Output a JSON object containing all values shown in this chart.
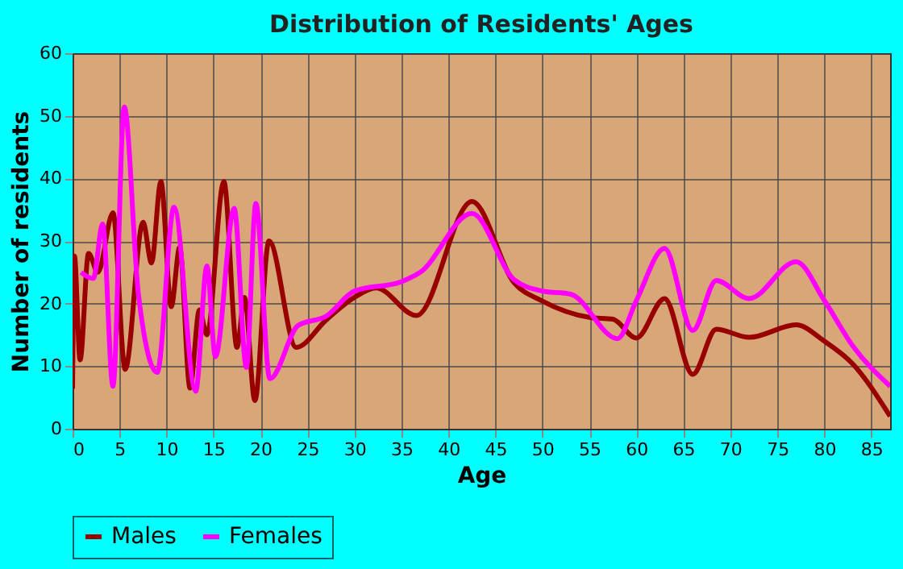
{
  "chart_data": {
    "type": "line",
    "title": "Distribution of Residents' Ages",
    "xlabel": "Age",
    "ylabel": "Number of residents",
    "xlim": [
      0,
      87
    ],
    "ylim": [
      0,
      60
    ],
    "xticks": [
      0,
      5,
      10,
      15,
      20,
      25,
      30,
      35,
      40,
      45,
      50,
      55,
      60,
      65,
      70,
      75,
      80,
      85
    ],
    "yticks": [
      0,
      10,
      20,
      30,
      40,
      50,
      60
    ],
    "grid": true,
    "legend": "bottom",
    "line_style": "solid",
    "marker": "none",
    "series": [
      {
        "name": "Males",
        "color": "#990000",
        "x": [
          0,
          0.2,
          0.8,
          1.7,
          2.7,
          4.3,
          5.6,
          7.5,
          8.4,
          9.4,
          10.5,
          11.4,
          12.5,
          13.5,
          14.3,
          16.1,
          17.5,
          18.3,
          19.4,
          20.9,
          23.8,
          27,
          30,
          32.3,
          36.6,
          42.5,
          47,
          50,
          55,
          57.5,
          60,
          63,
          66,
          68.5,
          72,
          77,
          80,
          83,
          87
        ],
        "values": [
          6.4,
          27.6,
          11,
          28,
          25,
          34.5,
          9.5,
          33,
          26.5,
          39.5,
          19.5,
          29,
          6.5,
          19,
          15,
          39.5,
          13,
          21,
          4.5,
          30,
          13,
          17.4,
          21,
          22.5,
          18.1,
          36.3,
          23.3,
          20.4,
          17.8,
          17.5,
          14.5,
          20.8,
          8.7,
          15.9,
          14.6,
          16.6,
          14,
          10.4,
          2
        ]
      },
      {
        "name": "Females",
        "color": "#ff00ff",
        "x": [
          0.9,
          2.2,
          3.2,
          4.3,
          5.5,
          7,
          9,
          10.8,
          13.1,
          14.3,
          15.2,
          17.2,
          18.5,
          19.5,
          21,
          24,
          27,
          30,
          35,
          37,
          42.5,
          47,
          50,
          53,
          58,
          60,
          63,
          66,
          68.5,
          72,
          77,
          80,
          83,
          87
        ],
        "values": [
          25,
          24,
          32.7,
          6.8,
          51.4,
          21.6,
          9,
          35.4,
          6,
          26,
          11.5,
          35.2,
          9.8,
          36,
          8,
          16.5,
          18,
          22,
          23.5,
          25,
          34.4,
          23.8,
          22,
          21.5,
          14.4,
          20.5,
          28.8,
          15.7,
          23.7,
          20.8,
          26.7,
          20.5,
          13.3,
          6.8
        ]
      }
    ]
  }
}
